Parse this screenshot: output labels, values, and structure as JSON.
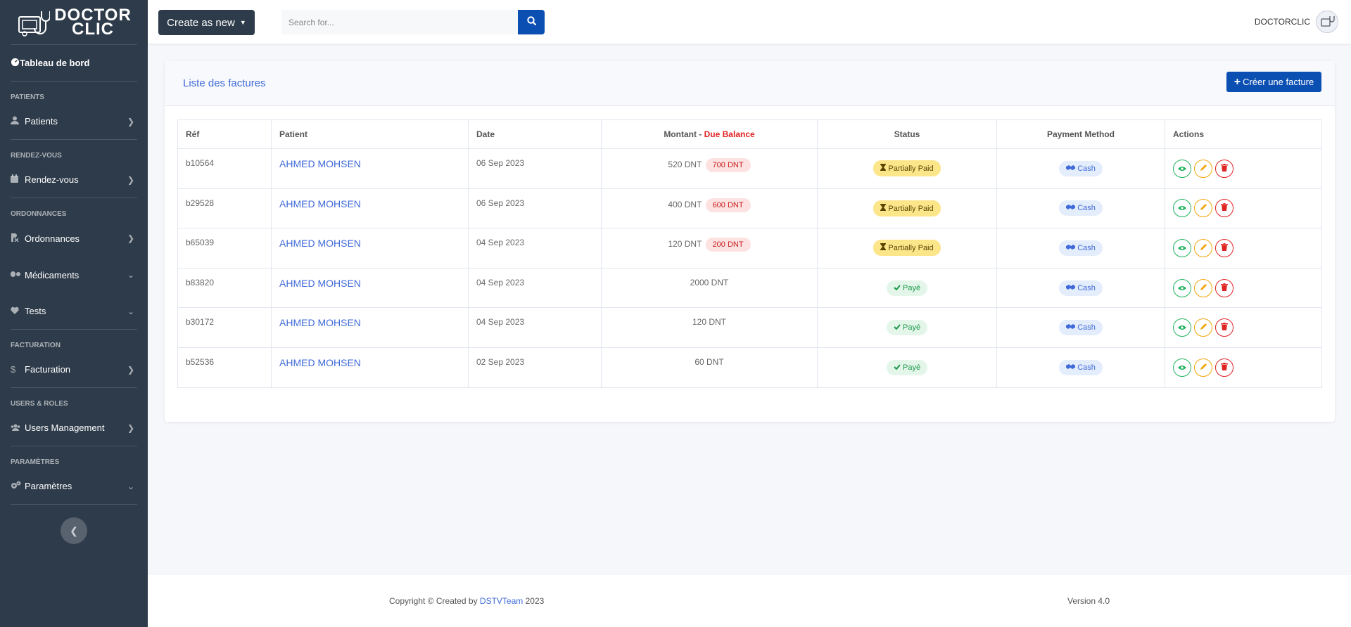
{
  "sidebar": {
    "brand": {
      "line1": "DOCTOR",
      "line2": "CLIC"
    },
    "dashboard": "Tableau de bord",
    "sections": {
      "patients": "PATIENTS",
      "rdv": "RENDEZ-VOUS",
      "ordonnances": "ORDONNANCES",
      "facturation": "FACTURATION",
      "users": "USERS & ROLES",
      "parametres": "PARAMÈTRES"
    },
    "items": {
      "patients": "Patients",
      "rendezvous": "Rendez-vous",
      "ordonnances": "Ordonnances",
      "medicaments": "Médicaments",
      "tests": "Tests",
      "facturation": "Facturation",
      "users": "Users Management",
      "parametres": "Paramètres"
    }
  },
  "topbar": {
    "create_label": "Create as new",
    "search_placeholder": "Search for...",
    "user_name": "DOCTORCLIC"
  },
  "card": {
    "title": "Liste des factures",
    "new_button": "Créer une facture"
  },
  "table": {
    "headers": {
      "ref": "Réf",
      "patient": "Patient",
      "date": "Date",
      "montant": "Montant",
      "sep": " - ",
      "due": "Due Balance",
      "status": "Status",
      "payment": "Payment Method",
      "actions": "Actions"
    },
    "rows": [
      {
        "ref": "b10564",
        "patient": "AHMED MOHSEN",
        "date": "06 Sep 2023",
        "amount": "520 DNT",
        "due": "700 DNT",
        "status": "Partially Paid",
        "method": "Cash"
      },
      {
        "ref": "b29528",
        "patient": "AHMED MOHSEN",
        "date": "06 Sep 2023",
        "amount": "400 DNT",
        "due": "600 DNT",
        "status": "Partially Paid",
        "method": "Cash"
      },
      {
        "ref": "b65039",
        "patient": "AHMED MOHSEN",
        "date": "04 Sep 2023",
        "amount": "120 DNT",
        "due": "200 DNT",
        "status": "Partially Paid",
        "method": "Cash"
      },
      {
        "ref": "b83820",
        "patient": "AHMED MOHSEN",
        "date": "04 Sep 2023",
        "amount": "2000 DNT",
        "due": "",
        "status": "Payé",
        "method": "Cash"
      },
      {
        "ref": "b30172",
        "patient": "AHMED MOHSEN",
        "date": "04 Sep 2023",
        "amount": "120 DNT",
        "due": "",
        "status": "Payé",
        "method": "Cash"
      },
      {
        "ref": "b52536",
        "patient": "AHMED MOHSEN",
        "date": "02 Sep 2023",
        "amount": "60 DNT",
        "due": "",
        "status": "Payé",
        "method": "Cash"
      }
    ]
  },
  "footer": {
    "copyright_prefix": "Copyright © Created by",
    "team": "DSTVTeam",
    "year": "2023",
    "version": "Version 4.0"
  },
  "colors": {
    "sidebar_bg": "#2e3b4a",
    "primary": "#0b4fb3",
    "link": "#3f6ad8",
    "partial": "#fde68a",
    "paid": "#e4f6ea",
    "danger": "#e02424"
  }
}
